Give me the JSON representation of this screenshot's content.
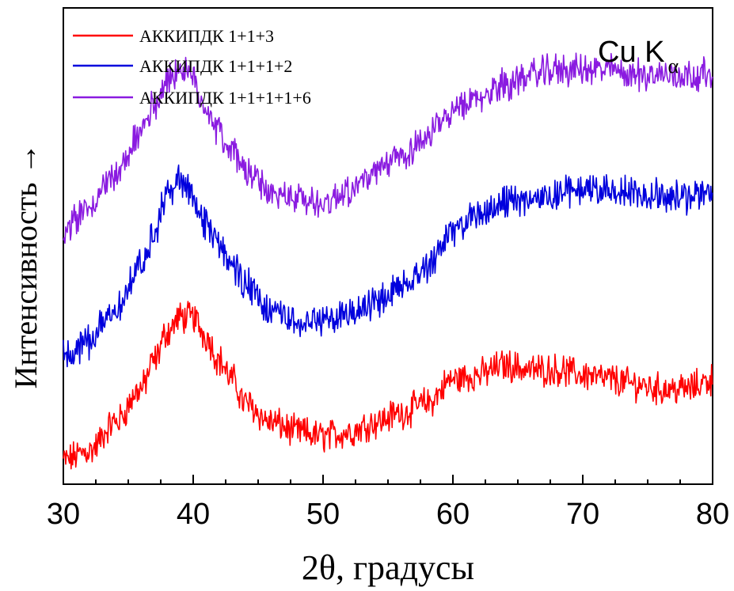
{
  "chart_data": {
    "type": "line",
    "title": "",
    "xlabel": "2θ, градусы",
    "ylabel": "Интенсивность →",
    "xlim": [
      30,
      80
    ],
    "ylim": [
      0,
      10
    ],
    "x_ticks": [
      "30",
      "40",
      "50",
      "60",
      "70",
      "80"
    ],
    "y_ticks": [],
    "grid": false,
    "legend_position": "top-left",
    "annotation": {
      "main": "Cu K",
      "sub": "α",
      "position": "top-right"
    },
    "series": [
      {
        "name": "АККИПДК 1+1+3",
        "color": "#ff0000",
        "x": [
          30,
          32,
          34,
          36,
          37,
          38,
          39,
          40,
          41,
          42,
          43,
          44,
          46,
          48,
          50,
          52,
          54,
          56,
          58,
          60,
          62,
          64,
          66,
          68,
          70,
          72,
          74,
          76,
          78,
          80
        ],
        "y": [
          0.5,
          0.7,
          1.3,
          2.0,
          2.6,
          3.2,
          3.5,
          3.5,
          3.1,
          2.6,
          2.2,
          1.7,
          1.3,
          1.1,
          1.0,
          1.1,
          1.3,
          1.5,
          1.7,
          2.2,
          2.3,
          2.5,
          2.4,
          2.4,
          2.3,
          2.2,
          2.1,
          2.0,
          2.0,
          2.2
        ]
      },
      {
        "name": "АККИПДК 1+1+1+2",
        "color": "#0000dd",
        "x": [
          30,
          32,
          34,
          36,
          37,
          38,
          39,
          40,
          41,
          42,
          43,
          44,
          46,
          48,
          50,
          52,
          54,
          56,
          58,
          60,
          62,
          64,
          66,
          68,
          70,
          72,
          74,
          76,
          78,
          80
        ],
        "y": [
          2.7,
          3.0,
          3.7,
          4.6,
          5.3,
          6.1,
          6.4,
          6.0,
          5.4,
          5.0,
          4.6,
          4.2,
          3.6,
          3.4,
          3.4,
          3.6,
          3.8,
          4.2,
          4.6,
          5.3,
          5.7,
          5.9,
          6.0,
          6.1,
          6.2,
          6.2,
          6.1,
          6.1,
          6.0,
          6.2
        ]
      },
      {
        "name": "АККИПДК 1+1+1+1+6",
        "color": "#8a1be0",
        "x": [
          30,
          32,
          34,
          36,
          37,
          38,
          39,
          40,
          41,
          42,
          43,
          44,
          46,
          48,
          50,
          52,
          54,
          56,
          58,
          60,
          62,
          64,
          66,
          68,
          70,
          72,
          74,
          76,
          78,
          80
        ],
        "y": [
          5.3,
          5.8,
          6.5,
          7.4,
          8.0,
          8.5,
          8.7,
          8.5,
          7.9,
          7.4,
          7.0,
          6.6,
          6.1,
          6.0,
          5.9,
          6.2,
          6.5,
          6.9,
          7.3,
          7.8,
          8.1,
          8.4,
          8.6,
          8.7,
          8.7,
          8.7,
          8.6,
          8.6,
          8.6,
          8.6
        ]
      }
    ]
  }
}
